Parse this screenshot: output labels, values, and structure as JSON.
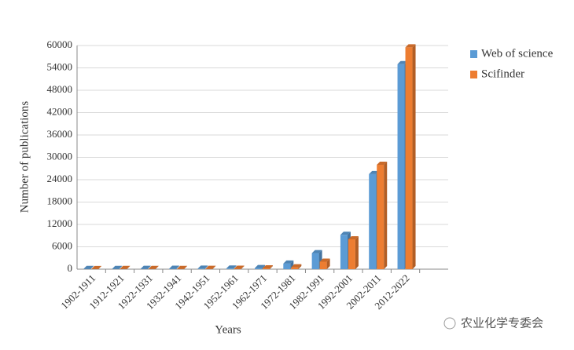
{
  "chart_data": {
    "type": "bar",
    "x_label": "Years",
    "y_label": "Number of publications",
    "categories": [
      "1902-1911",
      "1912-1921",
      "1922-1931",
      "1932-1941",
      "1942-1951",
      "1952-1961",
      "1962-1971",
      "1972-1981",
      "1982-1991",
      "1992-2001",
      "2002-2011",
      "2012-2022"
    ],
    "series": [
      {
        "name": "Web of science",
        "color": "#5b9bd5",
        "values": [
          50,
          60,
          80,
          100,
          120,
          150,
          300,
          1500,
          4300,
          9200,
          25500,
          55000
        ]
      },
      {
        "name": "Scifinder",
        "color": "#ed7d31",
        "values": [
          30,
          40,
          50,
          60,
          80,
          100,
          200,
          500,
          2000,
          8000,
          28000,
          59500
        ]
      }
    ],
    "ylim": [
      0,
      60000
    ],
    "yticks": [
      0,
      6000,
      12000,
      18000,
      24000,
      30000,
      36000,
      42000,
      48000,
      54000,
      60000
    ],
    "grid": true,
    "legend": "right",
    "watermark": "农业化学专委会"
  }
}
